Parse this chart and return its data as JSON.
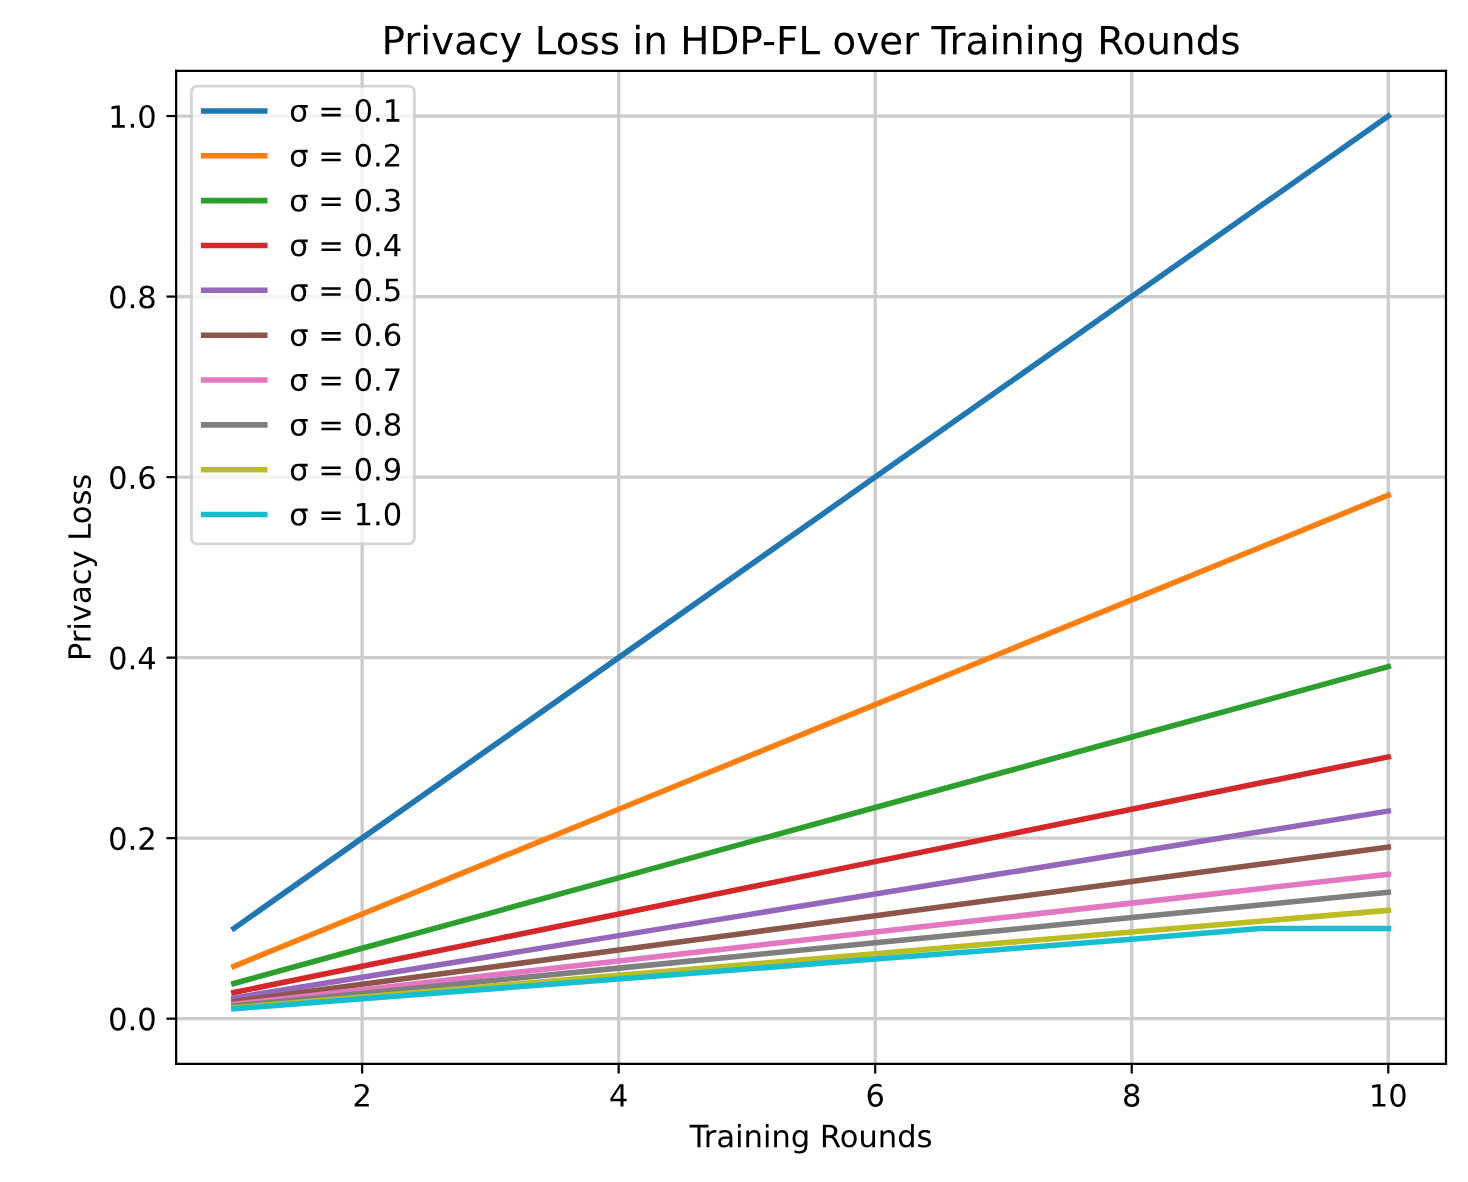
{
  "chart_data": {
    "type": "line",
    "title": "Privacy Loss in HDP-FL over Training Rounds",
    "xlabel": "Training Rounds",
    "ylabel": "Privacy Loss",
    "x": [
      1,
      2,
      3,
      4,
      5,
      6,
      7,
      8,
      9,
      10
    ],
    "series": [
      {
        "name": "σ = 0.1",
        "color": "#1f77b4",
        "values": [
          0.1,
          0.2,
          0.3,
          0.4,
          0.5,
          0.6,
          0.7,
          0.8,
          0.9,
          1.0
        ]
      },
      {
        "name": "σ = 0.2",
        "color": "#ff7f0e",
        "values": [
          0.058,
          0.116,
          0.174,
          0.232,
          0.29,
          0.348,
          0.406,
          0.464,
          0.522,
          0.58
        ]
      },
      {
        "name": "σ = 0.3",
        "color": "#2ca02c",
        "values": [
          0.039,
          0.078,
          0.117,
          0.156,
          0.195,
          0.234,
          0.273,
          0.312,
          0.351,
          0.39
        ]
      },
      {
        "name": "σ = 0.4",
        "color": "#d62728",
        "values": [
          0.029,
          0.058,
          0.087,
          0.116,
          0.145,
          0.174,
          0.203,
          0.232,
          0.261,
          0.29
        ]
      },
      {
        "name": "σ = 0.5",
        "color": "#9467bd",
        "values": [
          0.023,
          0.046,
          0.069,
          0.092,
          0.115,
          0.138,
          0.161,
          0.184,
          0.207,
          0.23
        ]
      },
      {
        "name": "σ = 0.6",
        "color": "#8c564b",
        "values": [
          0.019,
          0.038,
          0.057,
          0.076,
          0.095,
          0.114,
          0.133,
          0.152,
          0.171,
          0.19
        ]
      },
      {
        "name": "σ = 0.7",
        "color": "#e377c2",
        "values": [
          0.016,
          0.032,
          0.048,
          0.064,
          0.08,
          0.096,
          0.112,
          0.128,
          0.144,
          0.16
        ]
      },
      {
        "name": "σ = 0.8",
        "color": "#7f7f7f",
        "values": [
          0.014,
          0.028,
          0.042,
          0.056,
          0.07,
          0.084,
          0.098,
          0.112,
          0.126,
          0.14
        ]
      },
      {
        "name": "σ = 0.9",
        "color": "#bcbd22",
        "values": [
          0.012,
          0.024,
          0.036,
          0.048,
          0.06,
          0.072,
          0.084,
          0.096,
          0.108,
          0.12
        ]
      },
      {
        "name": "σ = 1.0",
        "color": "#17becf",
        "values": [
          0.011,
          0.022,
          0.033,
          0.044,
          0.055,
          0.066,
          0.077,
          0.088,
          0.1,
          0.1
        ]
      }
    ],
    "xlim": [
      0.55,
      10.45
    ],
    "xticks": [
      2,
      4,
      6,
      8,
      10
    ],
    "ylim": [
      -0.05,
      1.05
    ],
    "yticks": [
      {
        "value": 0,
        "label": "0.0"
      },
      0.2,
      0.4,
      0.6,
      0.8,
      {
        "value": 1,
        "label": "1.0"
      }
    ],
    "grid": true,
    "legend": "top left",
    "marker": "none",
    "line_style": "solid"
  }
}
